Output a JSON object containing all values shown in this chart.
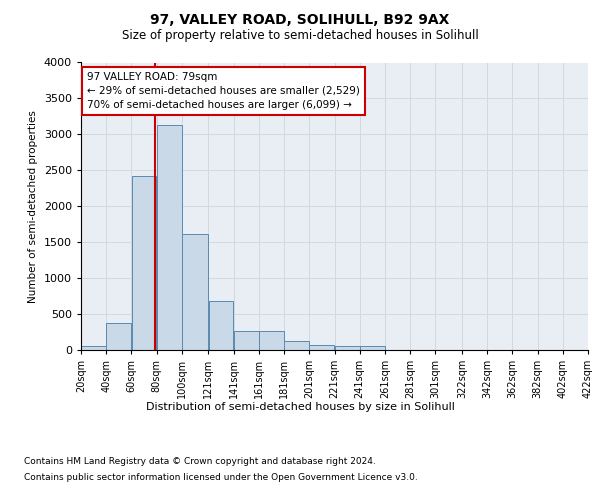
{
  "title1": "97, VALLEY ROAD, SOLIHULL, B92 9AX",
  "title2": "Size of property relative to semi-detached houses in Solihull",
  "xlabel": "Distribution of semi-detached houses by size in Solihull",
  "ylabel": "Number of semi-detached properties",
  "footnote1": "Contains HM Land Registry data © Crown copyright and database right 2024.",
  "footnote2": "Contains public sector information licensed under the Open Government Licence v3.0.",
  "annotation_title": "97 VALLEY ROAD: 79sqm",
  "annotation_line1": "← 29% of semi-detached houses are smaller (2,529)",
  "annotation_line2": "70% of semi-detached houses are larger (6,099) →",
  "property_value": 79,
  "bar_edges": [
    20,
    40,
    60,
    80,
    100,
    121,
    141,
    161,
    181,
    201,
    221,
    241,
    261,
    281,
    301,
    322,
    342,
    362,
    382,
    402,
    422
  ],
  "bar_heights": [
    50,
    380,
    2420,
    3130,
    1620,
    680,
    270,
    270,
    120,
    70,
    55,
    50,
    0,
    0,
    0,
    0,
    0,
    0,
    0,
    0
  ],
  "bar_color": "#c9d9e8",
  "bar_edge_color": "#5b8ab0",
  "vline_color": "#cc0000",
  "annotation_box_color": "#cc0000",
  "grid_color": "#d0d8e0",
  "background_color": "#e8eef4",
  "ylim": [
    0,
    4000
  ],
  "yticks": [
    0,
    500,
    1000,
    1500,
    2000,
    2500,
    3000,
    3500,
    4000
  ]
}
